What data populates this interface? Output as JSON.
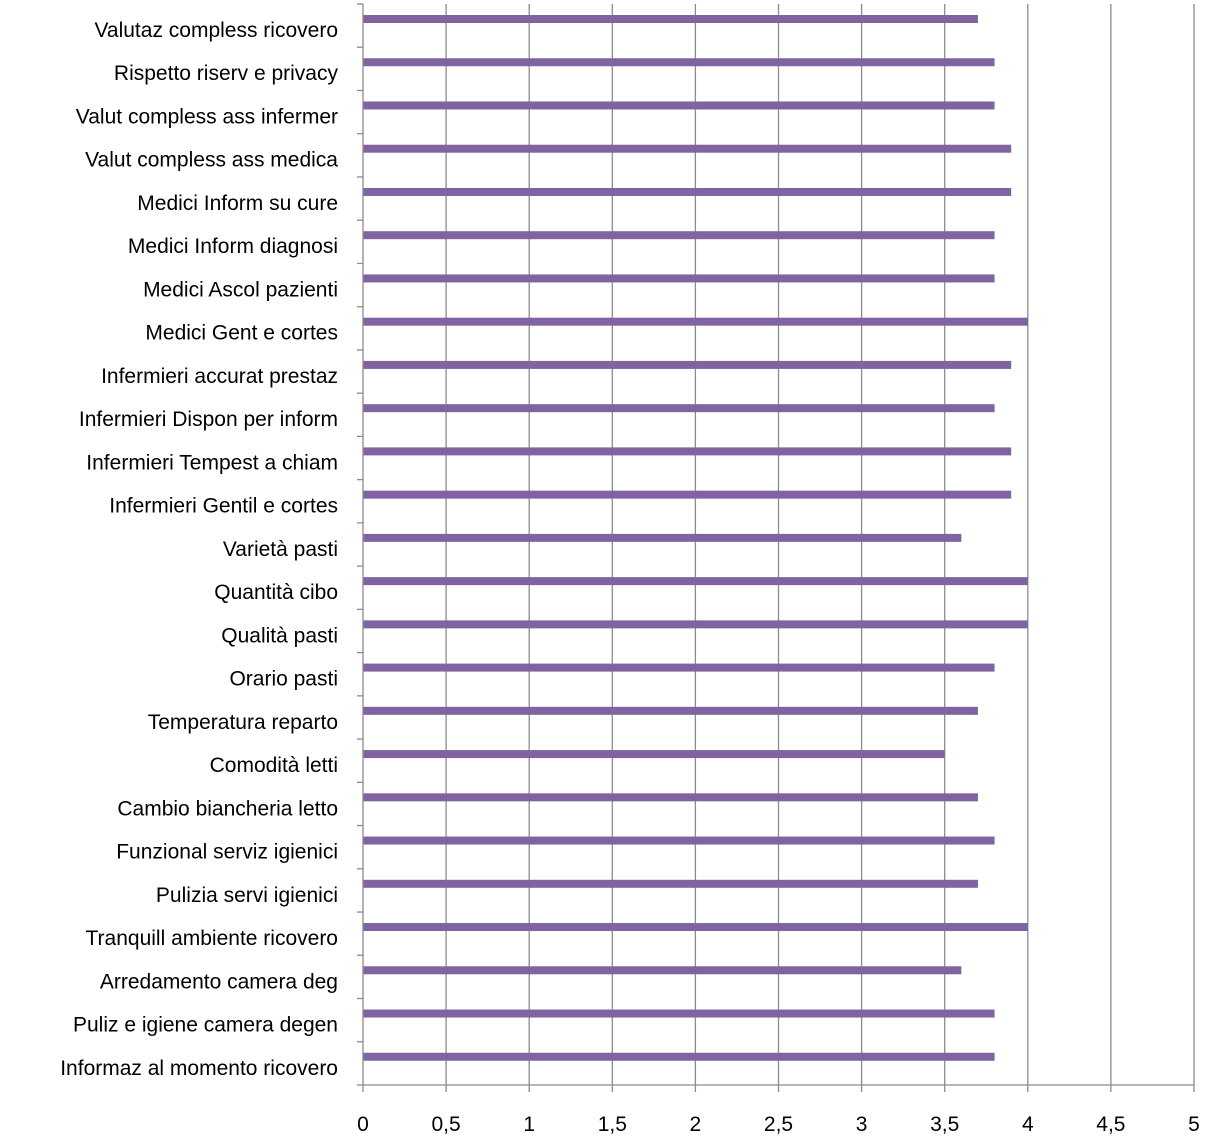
{
  "chart_data": {
    "type": "bar",
    "orientation": "horizontal",
    "categories": [
      "Valutaz compless ricovero",
      "Rispetto riserv e privacy",
      "Valut compless ass infermer",
      "Valut compless ass medica",
      "Medici Inform su cure",
      "Medici Inform diagnosi",
      "Medici Ascol pazienti",
      "Medici Gent e cortes",
      "Infermieri accurat prestaz",
      "Infermieri Dispon per inform",
      "Infermieri  Tempest a chiam",
      "Infermieri Gentil e cortes",
      "Varietà pasti",
      "Quantità cibo",
      "Qualità pasti",
      "Orario pasti",
      "Temperatura reparto",
      "Comodità letti",
      "Cambio biancheria letto",
      "Funzional serviz igienici",
      "Pulizia servi igienici",
      "Tranquill ambiente ricovero",
      "Arredamento camera deg",
      "Puliz e igiene camera degen",
      "Informaz al momento ricovero"
    ],
    "values": [
      3.7,
      3.8,
      3.8,
      3.9,
      3.9,
      3.8,
      3.8,
      4.0,
      3.9,
      3.8,
      3.9,
      3.9,
      3.6,
      4.0,
      4.0,
      3.8,
      3.7,
      3.5,
      3.7,
      3.8,
      3.7,
      4.0,
      3.6,
      3.8,
      3.8
    ],
    "x_ticks": [
      "0",
      "0,5",
      "1",
      "1,5",
      "2",
      "2,5",
      "3",
      "3,5",
      "4",
      "4,5",
      "5"
    ],
    "xlim": [
      0,
      5
    ],
    "grid": "vertical",
    "legend": "none",
    "bar_color": "#8064a2",
    "grid_color": "#8c8c8c",
    "axis_color": "#8c8c8c"
  }
}
